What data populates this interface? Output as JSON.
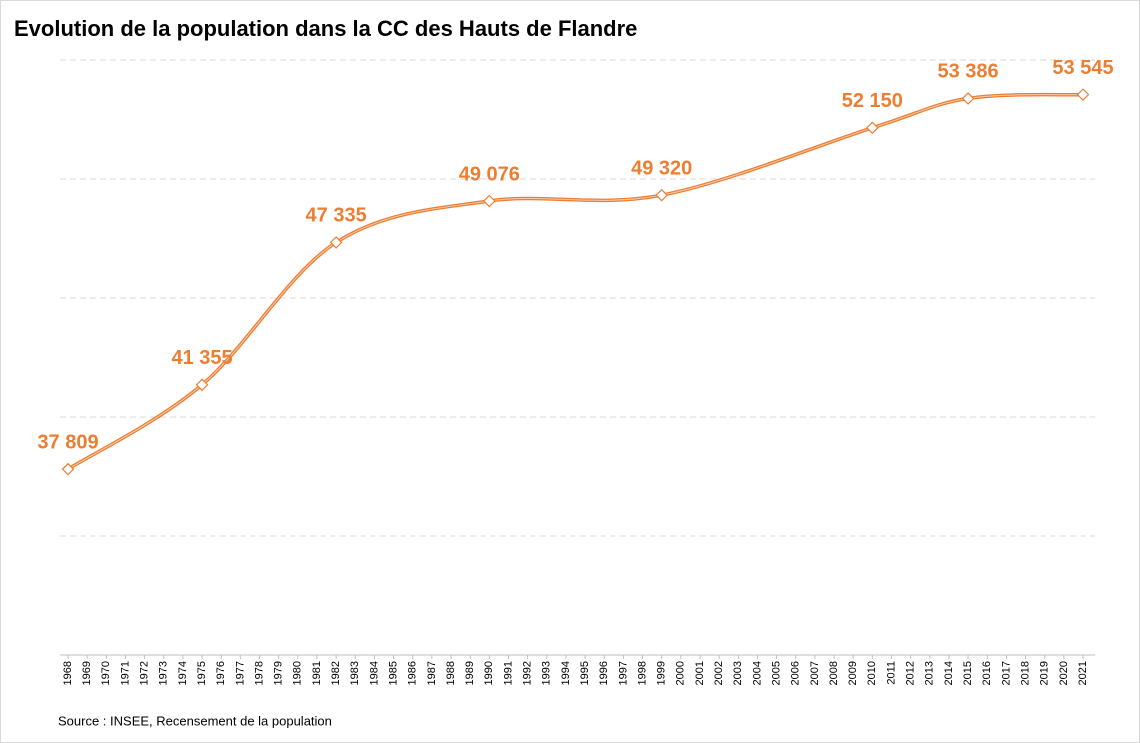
{
  "chart_data": {
    "type": "line",
    "title": "Evolution de la population dans la CC des Hauts de Flandre",
    "source": "Source : INSEE, Recensement de la population",
    "x": [
      1968,
      1975,
      1982,
      1990,
      1999,
      2010,
      2015,
      2021
    ],
    "series": [
      {
        "name": "Population",
        "color": "#ED7D31",
        "values": [
          37809,
          41355,
          47335,
          49076,
          49320,
          52150,
          53386,
          53545
        ],
        "value_labels": [
          "37 809",
          "41 355",
          "47 335",
          "49 076",
          "49 320",
          "52 150",
          "53 386",
          "53 545"
        ]
      }
    ],
    "xlim": [
      1968,
      2021
    ],
    "xticks": [
      1968,
      1969,
      1970,
      1971,
      1972,
      1973,
      1974,
      1975,
      1976,
      1977,
      1978,
      1979,
      1980,
      1981,
      1982,
      1983,
      1984,
      1985,
      1986,
      1987,
      1988,
      1989,
      1990,
      1991,
      1992,
      1993,
      1994,
      1995,
      1996,
      1997,
      1998,
      1999,
      2000,
      2001,
      2002,
      2003,
      2004,
      2005,
      2006,
      2007,
      2008,
      2009,
      2010,
      2011,
      2012,
      2013,
      2014,
      2015,
      2016,
      2017,
      2018,
      2019,
      2020,
      2021
    ],
    "ylim": [
      30000,
      55000
    ],
    "yticks": [
      30000,
      35000,
      40000,
      45000,
      50000,
      55000
    ],
    "grid": true,
    "smooth": true
  }
}
